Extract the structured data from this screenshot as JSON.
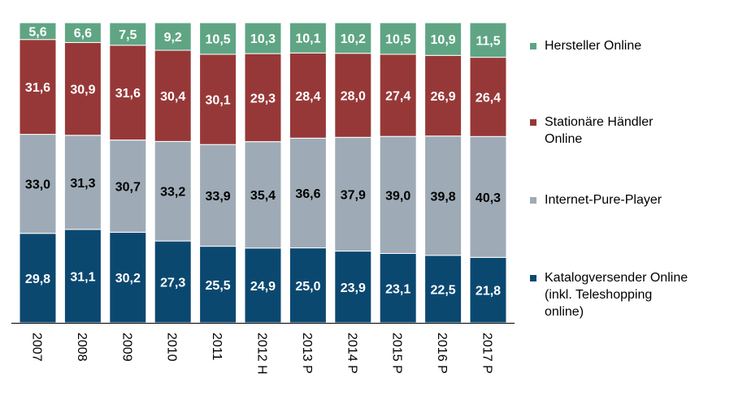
{
  "chart_data": {
    "type": "bar",
    "stacked": true,
    "percent_stacked": true,
    "categories": [
      "2007",
      "2008",
      "2009",
      "2010",
      "2011",
      "2012 H",
      "2013 P",
      "2014 P",
      "2015 P",
      "2016 P",
      "2017 P"
    ],
    "series": [
      {
        "name": "Katalogversender Online (inkl. Teleshopping online)",
        "color": "#0b4870",
        "label_color": "#ffffff",
        "values": [
          29.8,
          31.1,
          30.2,
          27.3,
          25.5,
          24.9,
          25.0,
          23.9,
          23.1,
          22.5,
          21.8
        ],
        "labels": [
          "29,8",
          "31,1",
          "30,2",
          "27,3",
          "25,5",
          "24,9",
          "25,0",
          "23,9",
          "23,1",
          "22,5",
          "21,8"
        ]
      },
      {
        "name": "Internet-Pure-Player",
        "color": "#9eabb6",
        "label_color": "#000000",
        "values": [
          33.0,
          31.3,
          30.7,
          33.2,
          33.9,
          35.4,
          36.6,
          37.9,
          39.0,
          39.8,
          40.3
        ],
        "labels": [
          "33,0",
          "31,3",
          "30,7",
          "33,2",
          "33,9",
          "35,4",
          "36,6",
          "37,9",
          "39,0",
          "39,8",
          "40,3"
        ]
      },
      {
        "name": "Stationäre Händler Online",
        "color": "#973838",
        "label_color": "#ffffff",
        "values": [
          31.6,
          30.9,
          31.6,
          30.4,
          30.1,
          29.3,
          28.4,
          28.0,
          27.4,
          26.9,
          26.4
        ],
        "labels": [
          "31,6",
          "30,9",
          "31,6",
          "30,4",
          "30,1",
          "29,3",
          "28,4",
          "28,0",
          "27,4",
          "26,9",
          "26,4"
        ]
      },
      {
        "name": "Hersteller Online",
        "color": "#5fa584",
        "label_color": "#ffffff",
        "values": [
          5.6,
          6.6,
          7.5,
          9.2,
          10.5,
          10.3,
          10.1,
          10.2,
          10.5,
          10.9,
          11.5
        ],
        "labels": [
          "5,6",
          "6,6",
          "7,5",
          "9,2",
          "10,5",
          "10,3",
          "10,1",
          "10,2",
          "10,5",
          "10,9",
          "11,5"
        ]
      }
    ],
    "legend_placement": "right",
    "grid": false
  },
  "legend": {
    "items": [
      {
        "lines": [
          "Hersteller Online"
        ],
        "color": "#5fa584"
      },
      {
        "lines": [
          "Stationäre Händler",
          "Online"
        ],
        "color": "#973838"
      },
      {
        "lines": [
          "Internet-Pure-Player"
        ],
        "color": "#9eabb6"
      },
      {
        "lines": [
          "Katalogversender Online",
          "(inkl. Teleshopping",
          "online)"
        ],
        "color": "#0b4870"
      }
    ]
  }
}
